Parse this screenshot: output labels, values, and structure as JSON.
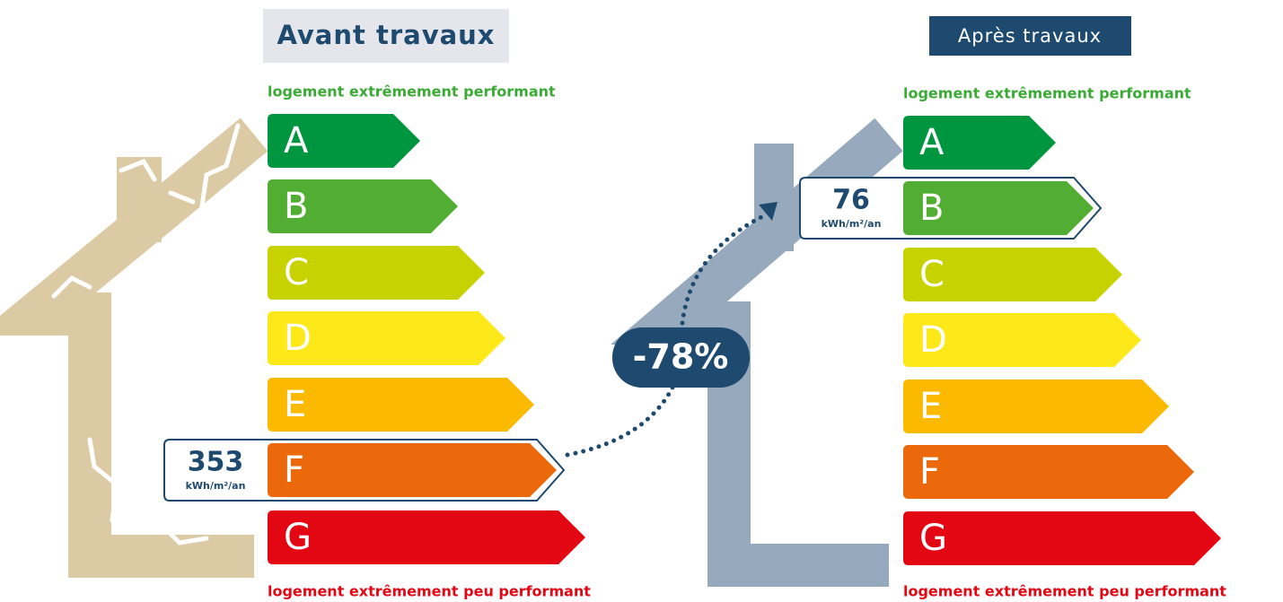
{
  "before": {
    "title": "Avant travaux",
    "top_label": "logement extrêmement performant",
    "bottom_label": "logement extrêmement peu performant",
    "value": "353",
    "unit": "kWh/m²/an"
  },
  "after": {
    "title": "Après travaux",
    "top_label": "logement extrêmement performant",
    "bottom_label": "logement extrêmement peu performant",
    "value": "76",
    "unit": "kWh/m²/an"
  },
  "change": "-78%",
  "classes": [
    "A",
    "B",
    "C",
    "D",
    "E",
    "F",
    "G"
  ]
}
